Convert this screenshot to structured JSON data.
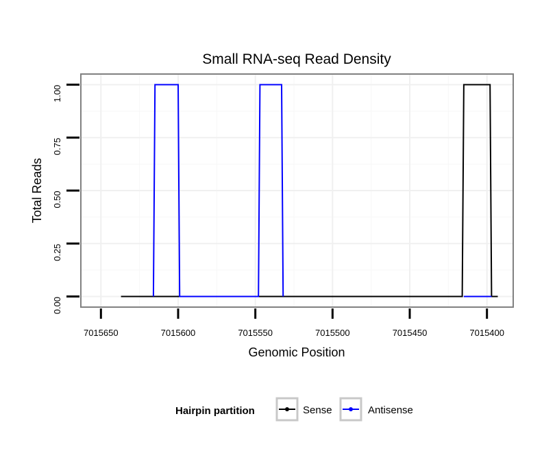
{
  "chart_data": {
    "type": "line",
    "title": "Small RNA-seq Read Density",
    "xlabel": "Genomic Position",
    "ylabel": "Total Reads",
    "x_reversed": true,
    "xlim": [
      7015663,
      7015383
    ],
    "ylim": [
      -0.05,
      1.05
    ],
    "xticks": [
      7015650,
      7015600,
      7015550,
      7015500,
      7015450,
      7015400
    ],
    "yticks": [
      0.0,
      0.25,
      0.5,
      0.75,
      1.0
    ],
    "xtick_labels": [
      "7015650",
      "7015600",
      "7015550",
      "7015500",
      "7015450",
      "7015400"
    ],
    "ytick_labels": [
      "0.00",
      "0.25",
      "0.50",
      "0.75",
      "1.00"
    ],
    "grid": true,
    "legend": {
      "title": "Hairpin partition",
      "position": "bottom",
      "entries": [
        "Sense",
        "Antisense"
      ]
    },
    "series": [
      {
        "name": "Sense",
        "color": "#000000",
        "x": [
          7015637,
          7015416,
          7015415,
          7015398,
          7015397,
          7015393
        ],
        "y": [
          0,
          0,
          1,
          1,
          0,
          0
        ]
      },
      {
        "name": "Antisense",
        "color": "#0000ff",
        "x": [
          7015616,
          7015615,
          7015600,
          7015599,
          7015548,
          7015547,
          7015533,
          7015532
        ],
        "y": [
          0,
          1,
          1,
          0,
          0,
          1,
          1,
          0
        ]
      },
      {
        "name": "Antisense",
        "color": "#0000ff",
        "x": [
          7015415,
          7015397
        ],
        "y": [
          0,
          0
        ]
      }
    ]
  }
}
